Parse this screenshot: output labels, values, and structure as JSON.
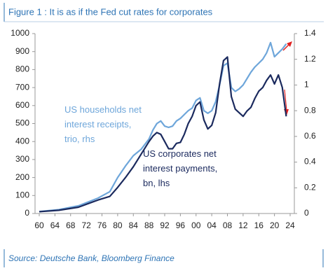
{
  "chart_data": {
    "type": "line",
    "title": "Figure 1 : It is as if the Fed cut rates for corporates",
    "source": "Source: Deutsche Bank, Bloomberg Finance",
    "x": [
      1960,
      1965,
      1970,
      1975,
      1978,
      1980,
      1982,
      1984,
      1986,
      1988,
      1989,
      1990,
      1991,
      1992,
      1993,
      1994,
      1995,
      1996,
      1997,
      1998,
      1999,
      2000,
      2001,
      2002,
      2003,
      2004,
      2005,
      2006,
      2007,
      2008,
      2009,
      2010,
      2011,
      2012,
      2013,
      2014,
      2015,
      2016,
      2017,
      2018,
      2019,
      2020,
      2021,
      2022,
      2023
    ],
    "series": [
      {
        "name": "US households net interest receipts, trio, rhs",
        "color": "#6ea6da",
        "axis": "y2",
        "values": [
          0.015,
          0.03,
          0.06,
          0.12,
          0.17,
          0.28,
          0.37,
          0.45,
          0.5,
          0.58,
          0.65,
          0.7,
          0.72,
          0.68,
          0.67,
          0.68,
          0.72,
          0.74,
          0.77,
          0.8,
          0.82,
          0.88,
          0.9,
          0.8,
          0.78,
          0.8,
          0.87,
          1.0,
          1.15,
          1.17,
          0.98,
          0.95,
          0.97,
          1.0,
          1.05,
          1.1,
          1.14,
          1.17,
          1.2,
          1.25,
          1.33,
          1.22,
          1.25,
          1.28,
          1.32
        ]
      },
      {
        "name": "US corporates net interest payments, bn, lhs",
        "color": "#1b2a5e",
        "values": [
          10,
          18,
          35,
          75,
          95,
          145,
          200,
          260,
          330,
          400,
          430,
          450,
          440,
          400,
          360,
          360,
          390,
          395,
          440,
          500,
          540,
          600,
          620,
          520,
          470,
          490,
          560,
          720,
          850,
          870,
          650,
          580,
          560,
          540,
          570,
          590,
          640,
          680,
          700,
          740,
          770,
          720,
          770,
          700,
          540
        ]
      }
    ],
    "xlim": [
      1960,
      2024
    ],
    "xticks": [
      {
        "value": 1960,
        "label": "60"
      },
      {
        "value": 1964,
        "label": "64"
      },
      {
        "value": 1968,
        "label": "68"
      },
      {
        "value": 1972,
        "label": "72"
      },
      {
        "value": 1976,
        "label": "76"
      },
      {
        "value": 1980,
        "label": "80"
      },
      {
        "value": 1984,
        "label": "84"
      },
      {
        "value": 1988,
        "label": "88"
      },
      {
        "value": 1992,
        "label": "92"
      },
      {
        "value": 1996,
        "label": "96"
      },
      {
        "value": 2000,
        "label": "00"
      },
      {
        "value": 2004,
        "label": "04"
      },
      {
        "value": 2008,
        "label": "08"
      },
      {
        "value": 2012,
        "label": "12"
      },
      {
        "value": 2016,
        "label": "16"
      },
      {
        "value": 2020,
        "label": "20"
      },
      {
        "value": 2024,
        "label": "24"
      }
    ],
    "ylim": [
      0,
      1000
    ],
    "yticks": [
      0,
      100,
      200,
      300,
      400,
      500,
      600,
      700,
      800,
      900,
      1000
    ],
    "y2lim": [
      0,
      1.4
    ],
    "y2ticks": [
      0,
      0.2,
      0.4,
      0.6,
      0.8,
      1,
      1.2,
      1.4
    ],
    "grid": false
  }
}
